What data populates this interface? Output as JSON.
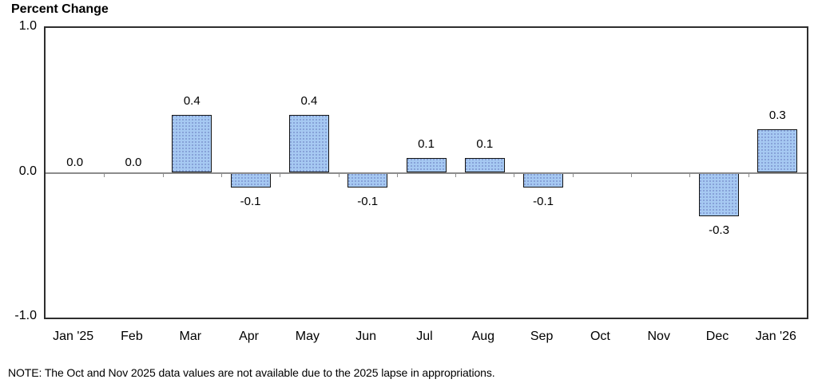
{
  "chart_data": {
    "type": "bar",
    "title": "Percent Change",
    "categories": [
      "Jan '25",
      "Feb",
      "Mar",
      "Apr",
      "May",
      "Jun",
      "Jul",
      "Aug",
      "Sep",
      "Oct",
      "Nov",
      "Dec",
      "Jan '26"
    ],
    "values": [
      0.0,
      0.0,
      0.4,
      -0.1,
      0.4,
      -0.1,
      0.1,
      0.1,
      -0.1,
      null,
      null,
      -0.3,
      0.3
    ],
    "value_labels": [
      "0.0",
      "0.0",
      "0.4",
      "-0.1",
      "0.4",
      "-0.1",
      "0.1",
      "0.1",
      "-0.1",
      null,
      null,
      "-0.3",
      "0.3"
    ],
    "xlabel": "",
    "ylabel": "Percent Change",
    "ylim": [
      -1.0,
      1.0
    ],
    "y_ticks": [
      {
        "value": 1.0,
        "label": "1.0"
      },
      {
        "value": 0.0,
        "label": "0.0"
      },
      {
        "value": -1.0,
        "label": "-1.0"
      }
    ],
    "grid": false,
    "legend": false,
    "missing_categories": [
      "Oct",
      "Nov"
    ],
    "colors": {
      "bar_fill": "#a6c9f2",
      "bar_dot_pattern": "#7d95cf",
      "bar_border": "#141414",
      "zero_line": "#8c8c8c",
      "plot_border": "#2e2e2e",
      "text": "#000000",
      "background": "#ffffff"
    }
  },
  "note": "NOTE: The Oct and Nov 2025 data values are not available due to the 2025 lapse in appropriations."
}
